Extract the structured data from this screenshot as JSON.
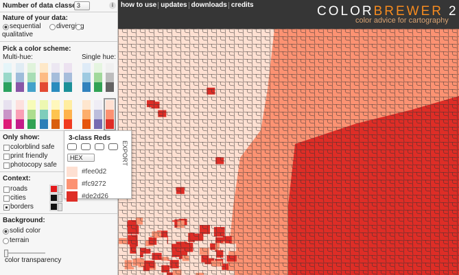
{
  "sidebar": {
    "classes_label": "Number of data classes:",
    "classes_value": "3",
    "info": "i",
    "nature": {
      "title": "Nature of your data:",
      "options": [
        "sequential",
        "diverging",
        "qualitative"
      ]
    },
    "scheme": {
      "title": "Pick a color scheme:",
      "multi_hue": "Multi-hue:",
      "single_hue": "Single hue:"
    },
    "only_show": {
      "title": "Only show:",
      "options": [
        "colorblind safe",
        "print friendly",
        "photocopy safe"
      ]
    },
    "context": {
      "title": "Context:",
      "options": [
        "roads",
        "cities",
        "borders"
      ]
    },
    "background": {
      "title": "Background:",
      "options": [
        "solid color",
        "terrain"
      ]
    },
    "transparency": "color transparency"
  },
  "nav": [
    "how to use",
    "updates",
    "downloads",
    "credits"
  ],
  "logo": {
    "color": "COLOR",
    "brewer": "BREWER",
    "version": "2.0",
    "tagline": "color advice for cartography"
  },
  "popup": {
    "title": "3-class Reds",
    "format": "HEX",
    "export": "EXPORT",
    "colors": [
      "#fee0d2",
      "#fc9272",
      "#de2d26"
    ]
  }
}
